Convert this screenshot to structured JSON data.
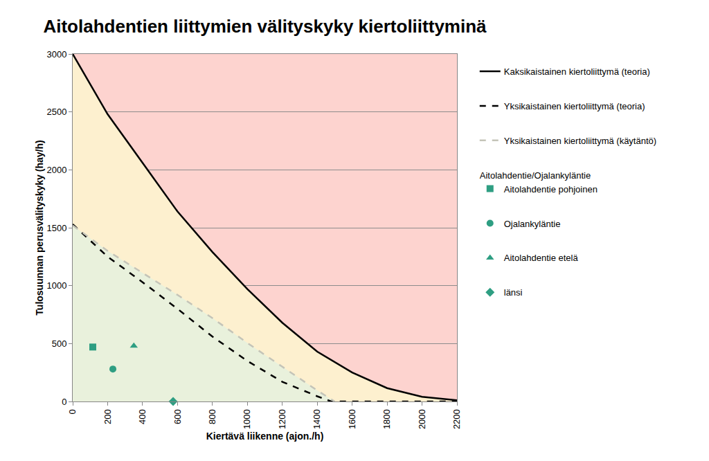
{
  "chart_data": {
    "type": "line",
    "title": "Aitolahdentien liittymien välityskyky kiertoliittyminä",
    "x_label": "Kiertävä liikenne (ajon./h)",
    "y_label": "Tulosuunnan perusvälityskyky (hay/h)",
    "xlim": [
      0,
      2200
    ],
    "xticks": [
      0,
      200,
      400,
      600,
      800,
      1000,
      1200,
      1400,
      1600,
      1800,
      2000,
      2200
    ],
    "ylim": [
      0,
      3000
    ],
    "yticks": [
      0,
      500,
      1000,
      1500,
      2000,
      2500,
      3000
    ],
    "grid": true,
    "legend": "right",
    "legend_group_title": "Aitolahdentie/Ojalankyläntie",
    "series": [
      {
        "name": "Kaksikaistainen kiertoliittymä (teoria)",
        "type": "line",
        "color": "#000000",
        "line_style": "solid",
        "x": [
          0,
          200,
          400,
          600,
          800,
          1000,
          1200,
          1400,
          1600,
          1800,
          2000,
          2200
        ],
        "values": [
          3000,
          2480,
          2060,
          1640,
          1290,
          970,
          680,
          430,
          250,
          115,
          40,
          10
        ]
      },
      {
        "name": "Yksikaistainen kiertoliittymä (teoria)",
        "type": "line",
        "color": "#000000",
        "line_style": "dash",
        "x": [
          0,
          200,
          400,
          600,
          800,
          1000,
          1200,
          1400,
          1480,
          1600,
          1800,
          2000,
          2200
        ],
        "values": [
          1530,
          1250,
          1030,
          800,
          560,
          350,
          170,
          45,
          0,
          0,
          0,
          0,
          0
        ]
      },
      {
        "name": "Yksikaistainen kiertoliittymä (käytäntö)",
        "type": "line",
        "color": "#c4c4b8",
        "line_style": "dash",
        "x": [
          0,
          200,
          400,
          600,
          800,
          1000,
          1200,
          1400,
          1500
        ],
        "values": [
          1520,
          1300,
          1110,
          920,
          720,
          505,
          300,
          95,
          0
        ]
      },
      {
        "name": "Aitolahdentie pohjoinen",
        "type": "scatter",
        "color": "#2e9e82",
        "marker": "square",
        "x": [
          115
        ],
        "values": [
          470
        ]
      },
      {
        "name": "Ojalankyläntie",
        "type": "scatter",
        "color": "#2e9e82",
        "marker": "circle",
        "x": [
          230
        ],
        "values": [
          280
        ]
      },
      {
        "name": "Aitolahdentie etelä",
        "type": "scatter",
        "color": "#2e9e82",
        "marker": "triangle",
        "x": [
          350
        ],
        "values": [
          480
        ]
      },
      {
        "name": "länsi",
        "type": "scatter",
        "color": "#2e9e82",
        "marker": "diamond",
        "x": [
          575
        ],
        "values": [
          0
        ]
      }
    ]
  }
}
